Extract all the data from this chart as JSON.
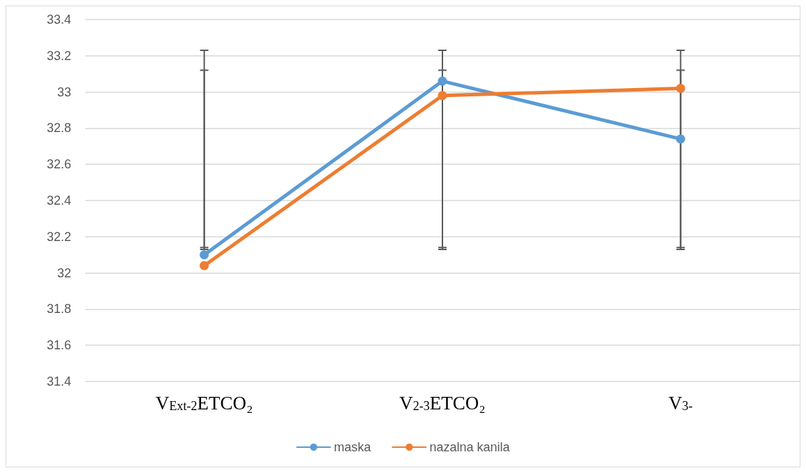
{
  "chart_data": {
    "type": "line",
    "categories": [
      "V$_{Ext-2}$ETCO₂",
      "V$_{2-3}$ETCO₂",
      "V$_{3-}$"
    ],
    "series": [
      {
        "name": "maska",
        "color": "#5b9bd5",
        "values": [
          32.1,
          33.06,
          32.74
        ],
        "errors": [
          [
            32.14,
            33.23
          ],
          [
            32.14,
            33.23
          ],
          [
            32.14,
            33.23
          ]
        ]
      },
      {
        "name": "nazalna kanila",
        "color": "#ed7d31",
        "values": [
          32.04,
          32.98,
          33.02
        ],
        "errors": [
          [
            32.13,
            33.12
          ],
          [
            32.13,
            33.12
          ],
          [
            32.13,
            33.12
          ]
        ]
      }
    ],
    "ylim": [
      31.4,
      33.4
    ],
    "yticks": [
      31.4,
      31.6,
      31.8,
      32,
      32.2,
      32.4,
      32.6,
      32.8,
      33,
      33.2,
      33.4
    ],
    "grid": "y",
    "legend": "bottom",
    "marker": "circle",
    "line_style": "solid"
  }
}
